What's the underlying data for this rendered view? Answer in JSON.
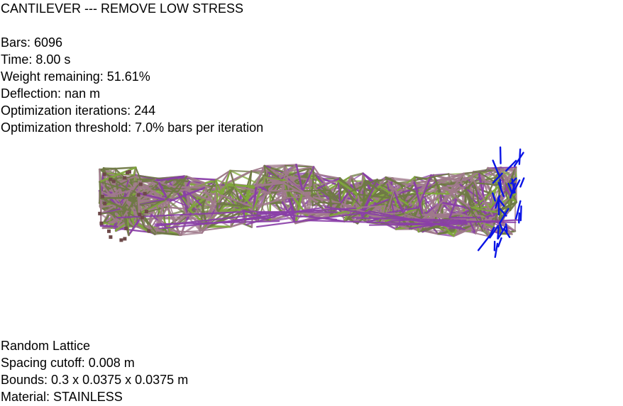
{
  "header": {
    "title": "CANTILEVER --- REMOVE LOW STRESS"
  },
  "stats": {
    "bars": "Bars: 6096",
    "time": "Time: 8.00 s",
    "weight": "Weight remaining: 51.61%",
    "deflection": "Deflection: nan m",
    "iterations": "Optimization iterations: 244",
    "threshold": "Optimization threshold: 7.0% bars per iteration"
  },
  "footer": {
    "lattice_type": "Random Lattice",
    "spacing": "Spacing cutoff: 0.008 m",
    "bounds": "Bounds: 0.3 x 0.0375 x 0.0375 m",
    "material": "Material: STAINLESS"
  },
  "colors": {
    "background": "#ffffff",
    "text": "#000000",
    "bar_tension": "#a07a8c",
    "bar_mid": "#6f7a45",
    "bar_compression": "#8a3fa8",
    "bar_highlight": "#7fa83a",
    "load_vectors": "#0a14e6",
    "fixed_supports": "#6e4a4a"
  },
  "icons": {
    "load_arrows": "load-vector-icon",
    "supports": "fixed-support-icon"
  }
}
